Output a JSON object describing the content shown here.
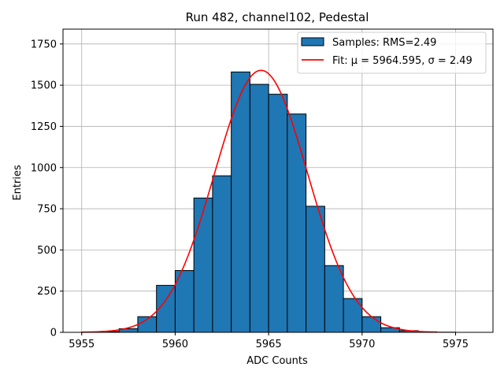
{
  "chart_data": {
    "type": "bar",
    "title": "Run 482, channel102, Pedestal",
    "xlabel": "ADC Counts",
    "ylabel": "Entries",
    "xlim": [
      5954,
      5977
    ],
    "ylim": [
      0,
      1840
    ],
    "xticks": [
      5955,
      5960,
      5965,
      5970,
      5975
    ],
    "yticks": [
      0,
      250,
      500,
      750,
      1000,
      1250,
      1500,
      1750
    ],
    "grid": true,
    "legend_placement": "top-right",
    "bin_width": 1,
    "bins": [
      {
        "x": 5955,
        "count": 2
      },
      {
        "x": 5956,
        "count": 5
      },
      {
        "x": 5957,
        "count": 22
      },
      {
        "x": 5958,
        "count": 95
      },
      {
        "x": 5959,
        "count": 285
      },
      {
        "x": 5960,
        "count": 375
      },
      {
        "x": 5961,
        "count": 815
      },
      {
        "x": 5962,
        "count": 950
      },
      {
        "x": 5963,
        "count": 1580
      },
      {
        "x": 5964,
        "count": 1505
      },
      {
        "x": 5965,
        "count": 1445
      },
      {
        "x": 5966,
        "count": 1325
      },
      {
        "x": 5967,
        "count": 765
      },
      {
        "x": 5968,
        "count": 405
      },
      {
        "x": 5969,
        "count": 205
      },
      {
        "x": 5970,
        "count": 95
      },
      {
        "x": 5971,
        "count": 28
      },
      {
        "x": 5972,
        "count": 10
      },
      {
        "x": 5973,
        "count": 3
      },
      {
        "x": 5974,
        "count": 1
      }
    ],
    "fit": {
      "mu": 5964.595,
      "sigma": 2.49,
      "amplitude": 1590,
      "x_range": [
        5955,
        5974
      ]
    },
    "series": [
      {
        "name": "Samples: RMS=2.49",
        "kind": "histogram",
        "color": "#1f77b4",
        "edge_color": "#000000"
      },
      {
        "name": "Fit: μ = 5964.595, σ = 2.49",
        "kind": "line",
        "color": "#ff0000"
      }
    ]
  }
}
